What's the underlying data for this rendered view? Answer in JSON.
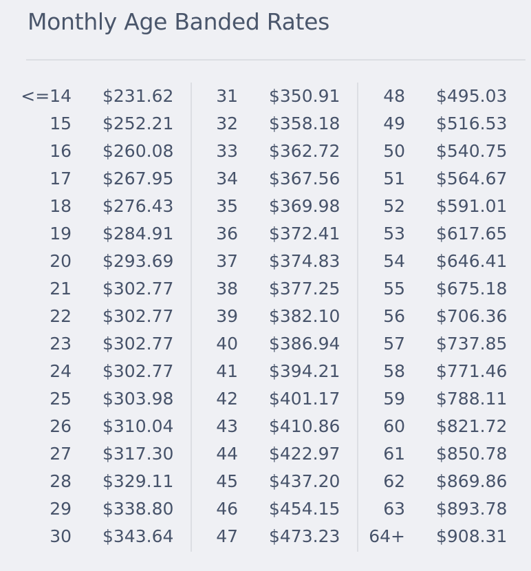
{
  "title": "Monthly Age Banded Rates",
  "columns": [
    {
      "rows": [
        {
          "age": "<=14",
          "rate": "$231.62"
        },
        {
          "age": "15",
          "rate": "$252.21"
        },
        {
          "age": "16",
          "rate": "$260.08"
        },
        {
          "age": "17",
          "rate": "$267.95"
        },
        {
          "age": "18",
          "rate": "$276.43"
        },
        {
          "age": "19",
          "rate": "$284.91"
        },
        {
          "age": "20",
          "rate": "$293.69"
        },
        {
          "age": "21",
          "rate": "$302.77"
        },
        {
          "age": "22",
          "rate": "$302.77"
        },
        {
          "age": "23",
          "rate": "$302.77"
        },
        {
          "age": "24",
          "rate": "$302.77"
        },
        {
          "age": "25",
          "rate": "$303.98"
        },
        {
          "age": "26",
          "rate": "$310.04"
        },
        {
          "age": "27",
          "rate": "$317.30"
        },
        {
          "age": "28",
          "rate": "$329.11"
        },
        {
          "age": "29",
          "rate": "$338.80"
        },
        {
          "age": "30",
          "rate": "$343.64"
        }
      ]
    },
    {
      "rows": [
        {
          "age": "31",
          "rate": "$350.91"
        },
        {
          "age": "32",
          "rate": "$358.18"
        },
        {
          "age": "33",
          "rate": "$362.72"
        },
        {
          "age": "34",
          "rate": "$367.56"
        },
        {
          "age": "35",
          "rate": "$369.98"
        },
        {
          "age": "36",
          "rate": "$372.41"
        },
        {
          "age": "37",
          "rate": "$374.83"
        },
        {
          "age": "38",
          "rate": "$377.25"
        },
        {
          "age": "39",
          "rate": "$382.10"
        },
        {
          "age": "40",
          "rate": "$386.94"
        },
        {
          "age": "41",
          "rate": "$394.21"
        },
        {
          "age": "42",
          "rate": "$401.17"
        },
        {
          "age": "43",
          "rate": "$410.86"
        },
        {
          "age": "44",
          "rate": "$422.97"
        },
        {
          "age": "45",
          "rate": "$437.20"
        },
        {
          "age": "46",
          "rate": "$454.15"
        },
        {
          "age": "47",
          "rate": "$473.23"
        }
      ]
    },
    {
      "rows": [
        {
          "age": "48",
          "rate": "$495.03"
        },
        {
          "age": "49",
          "rate": "$516.53"
        },
        {
          "age": "50",
          "rate": "$540.75"
        },
        {
          "age": "51",
          "rate": "$564.67"
        },
        {
          "age": "52",
          "rate": "$591.01"
        },
        {
          "age": "53",
          "rate": "$617.65"
        },
        {
          "age": "54",
          "rate": "$646.41"
        },
        {
          "age": "55",
          "rate": "$675.18"
        },
        {
          "age": "56",
          "rate": "$706.36"
        },
        {
          "age": "57",
          "rate": "$737.85"
        },
        {
          "age": "58",
          "rate": "$771.46"
        },
        {
          "age": "59",
          "rate": "$788.11"
        },
        {
          "age": "60",
          "rate": "$821.72"
        },
        {
          "age": "61",
          "rate": "$850.78"
        },
        {
          "age": "62",
          "rate": "$869.86"
        },
        {
          "age": "63",
          "rate": "$893.78"
        },
        {
          "age": "64+",
          "rate": "$908.31"
        }
      ]
    }
  ]
}
